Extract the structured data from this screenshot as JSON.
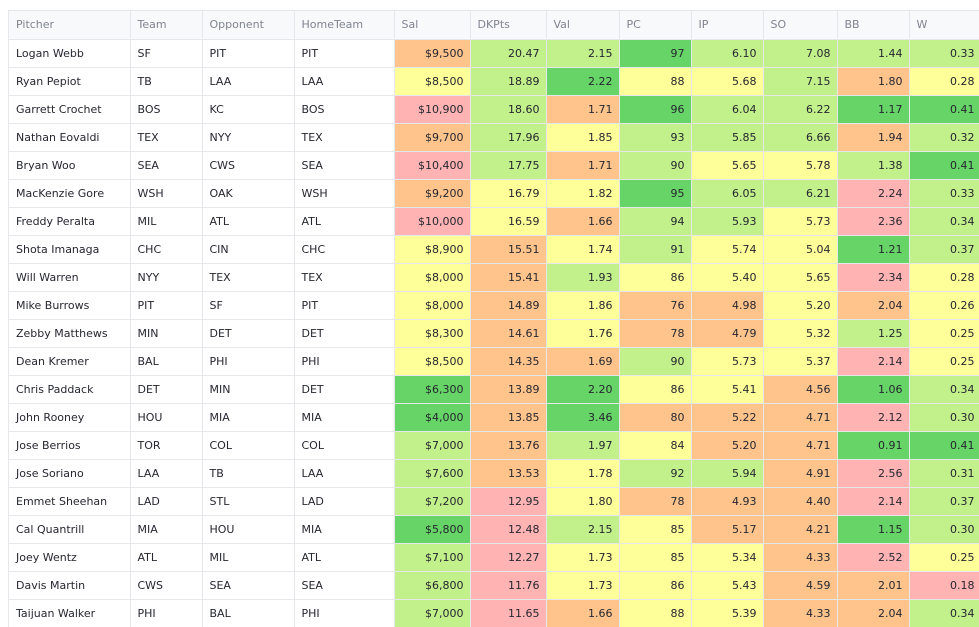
{
  "columns": [
    "Pitcher",
    "Team",
    "Opponent",
    "HomeTeam",
    "Sal",
    "DKPts",
    "Val",
    "PC",
    "IP",
    "SO",
    "BB",
    "W"
  ],
  "rows": [
    [
      "Logan Webb",
      "SF",
      "PIT",
      "PIT",
      "$9,500",
      "20.47",
      "2.15",
      "97",
      "6.10",
      "7.08",
      "1.44",
      "0.33"
    ],
    [
      "Ryan Pepiot",
      "TB",
      "LAA",
      "LAA",
      "$8,500",
      "18.89",
      "2.22",
      "88",
      "5.68",
      "7.15",
      "1.80",
      "0.28"
    ],
    [
      "Garrett Crochet",
      "BOS",
      "KC",
      "BOS",
      "$10,900",
      "18.60",
      "1.71",
      "96",
      "6.04",
      "6.22",
      "1.17",
      "0.41"
    ],
    [
      "Nathan Eovaldi",
      "TEX",
      "NYY",
      "TEX",
      "$9,700",
      "17.96",
      "1.85",
      "93",
      "5.85",
      "6.66",
      "1.94",
      "0.32"
    ],
    [
      "Bryan Woo",
      "SEA",
      "CWS",
      "SEA",
      "$10,400",
      "17.75",
      "1.71",
      "90",
      "5.65",
      "5.78",
      "1.38",
      "0.41"
    ],
    [
      "MacKenzie Gore",
      "WSH",
      "OAK",
      "WSH",
      "$9,200",
      "16.79",
      "1.82",
      "95",
      "6.05",
      "6.21",
      "2.24",
      "0.33"
    ],
    [
      "Freddy Peralta",
      "MIL",
      "ATL",
      "ATL",
      "$10,000",
      "16.59",
      "1.66",
      "94",
      "5.93",
      "5.73",
      "2.36",
      "0.34"
    ],
    [
      "Shota Imanaga",
      "CHC",
      "CIN",
      "CHC",
      "$8,900",
      "15.51",
      "1.74",
      "91",
      "5.74",
      "5.04",
      "1.21",
      "0.37"
    ],
    [
      "Will Warren",
      "NYY",
      "TEX",
      "TEX",
      "$8,000",
      "15.41",
      "1.93",
      "86",
      "5.40",
      "5.65",
      "2.34",
      "0.28"
    ],
    [
      "Mike Burrows",
      "PIT",
      "SF",
      "PIT",
      "$8,000",
      "14.89",
      "1.86",
      "76",
      "4.98",
      "5.20",
      "2.04",
      "0.26"
    ],
    [
      "Zebby Matthews",
      "MIN",
      "DET",
      "DET",
      "$8,300",
      "14.61",
      "1.76",
      "78",
      "4.79",
      "5.32",
      "1.25",
      "0.25"
    ],
    [
      "Dean Kremer",
      "BAL",
      "PHI",
      "PHI",
      "$8,500",
      "14.35",
      "1.69",
      "90",
      "5.73",
      "5.37",
      "2.14",
      "0.25"
    ],
    [
      "Chris Paddack",
      "DET",
      "MIN",
      "DET",
      "$6,300",
      "13.89",
      "2.20",
      "86",
      "5.41",
      "4.56",
      "1.06",
      "0.34"
    ],
    [
      "John Rooney",
      "HOU",
      "MIA",
      "MIA",
      "$4,000",
      "13.85",
      "3.46",
      "80",
      "5.22",
      "4.71",
      "2.12",
      "0.30"
    ],
    [
      "Jose Berrios",
      "TOR",
      "COL",
      "COL",
      "$7,000",
      "13.76",
      "1.97",
      "84",
      "5.20",
      "4.71",
      "0.91",
      "0.41"
    ],
    [
      "Jose Soriano",
      "LAA",
      "TB",
      "LAA",
      "$7,600",
      "13.53",
      "1.78",
      "92",
      "5.94",
      "4.91",
      "2.56",
      "0.31"
    ],
    [
      "Emmet Sheehan",
      "LAD",
      "STL",
      "LAD",
      "$7,200",
      "12.95",
      "1.80",
      "78",
      "4.93",
      "4.40",
      "2.14",
      "0.37"
    ],
    [
      "Cal Quantrill",
      "MIA",
      "HOU",
      "MIA",
      "$5,800",
      "12.48",
      "2.15",
      "85",
      "5.17",
      "4.21",
      "1.15",
      "0.30"
    ],
    [
      "Joey Wentz",
      "ATL",
      "MIL",
      "ATL",
      "$7,100",
      "12.27",
      "1.73",
      "85",
      "5.34",
      "4.33",
      "2.52",
      "0.25"
    ],
    [
      "Davis Martin",
      "CWS",
      "SEA",
      "SEA",
      "$6,800",
      "11.76",
      "1.73",
      "86",
      "5.43",
      "4.59",
      "2.01",
      "0.18"
    ],
    [
      "Taijuan Walker",
      "PHI",
      "BAL",
      "PHI",
      "$7,000",
      "11.65",
      "1.66",
      "88",
      "5.39",
      "4.33",
      "2.04",
      "0.34"
    ]
  ],
  "colors": {
    "green": "#66d466",
    "light_green": "#c2f08a",
    "yellow": "#ffff99",
    "orange": "#ffc48c",
    "pink": "#ffb3b3"
  },
  "cell_colors": [
    [
      "",
      "",
      "",
      "",
      "orange",
      "light_green",
      "light_green",
      "green",
      "light_green",
      "light_green",
      "light_green",
      "light_green"
    ],
    [
      "",
      "",
      "",
      "",
      "yellow",
      "light_green",
      "green",
      "yellow",
      "yellow",
      "light_green",
      "orange",
      "yellow"
    ],
    [
      "",
      "",
      "",
      "",
      "pink",
      "light_green",
      "orange",
      "green",
      "light_green",
      "light_green",
      "green",
      "green"
    ],
    [
      "",
      "",
      "",
      "",
      "orange",
      "light_green",
      "yellow",
      "light_green",
      "light_green",
      "light_green",
      "orange",
      "light_green"
    ],
    [
      "",
      "",
      "",
      "",
      "pink",
      "light_green",
      "orange",
      "light_green",
      "yellow",
      "yellow",
      "light_green",
      "green"
    ],
    [
      "",
      "",
      "",
      "",
      "orange",
      "yellow",
      "yellow",
      "green",
      "light_green",
      "light_green",
      "pink",
      "light_green"
    ],
    [
      "",
      "",
      "",
      "",
      "pink",
      "yellow",
      "orange",
      "light_green",
      "light_green",
      "yellow",
      "pink",
      "light_green"
    ],
    [
      "",
      "",
      "",
      "",
      "yellow",
      "orange",
      "yellow",
      "light_green",
      "yellow",
      "yellow",
      "green",
      "light_green"
    ],
    [
      "",
      "",
      "",
      "",
      "yellow",
      "orange",
      "light_green",
      "yellow",
      "yellow",
      "yellow",
      "pink",
      "yellow"
    ],
    [
      "",
      "",
      "",
      "",
      "yellow",
      "orange",
      "yellow",
      "orange",
      "orange",
      "yellow",
      "orange",
      "yellow"
    ],
    [
      "",
      "",
      "",
      "",
      "yellow",
      "orange",
      "yellow",
      "orange",
      "orange",
      "yellow",
      "light_green",
      "yellow"
    ],
    [
      "",
      "",
      "",
      "",
      "yellow",
      "orange",
      "orange",
      "light_green",
      "yellow",
      "yellow",
      "pink",
      "yellow"
    ],
    [
      "",
      "",
      "",
      "",
      "green",
      "orange",
      "green",
      "yellow",
      "yellow",
      "orange",
      "green",
      "light_green"
    ],
    [
      "",
      "",
      "",
      "",
      "green",
      "orange",
      "green",
      "orange",
      "orange",
      "orange",
      "pink",
      "light_green"
    ],
    [
      "",
      "",
      "",
      "",
      "light_green",
      "orange",
      "light_green",
      "yellow",
      "orange",
      "orange",
      "green",
      "green"
    ],
    [
      "",
      "",
      "",
      "",
      "light_green",
      "orange",
      "yellow",
      "light_green",
      "light_green",
      "orange",
      "pink",
      "light_green"
    ],
    [
      "",
      "",
      "",
      "",
      "light_green",
      "pink",
      "yellow",
      "orange",
      "orange",
      "orange",
      "pink",
      "light_green"
    ],
    [
      "",
      "",
      "",
      "",
      "green",
      "pink",
      "light_green",
      "yellow",
      "orange",
      "orange",
      "green",
      "light_green"
    ],
    [
      "",
      "",
      "",
      "",
      "light_green",
      "pink",
      "yellow",
      "yellow",
      "yellow",
      "orange",
      "pink",
      "yellow"
    ],
    [
      "",
      "",
      "",
      "",
      "light_green",
      "pink",
      "yellow",
      "yellow",
      "yellow",
      "orange",
      "orange",
      "pink"
    ],
    [
      "",
      "",
      "",
      "",
      "light_green",
      "pink",
      "orange",
      "yellow",
      "yellow",
      "orange",
      "orange",
      "light_green"
    ]
  ]
}
